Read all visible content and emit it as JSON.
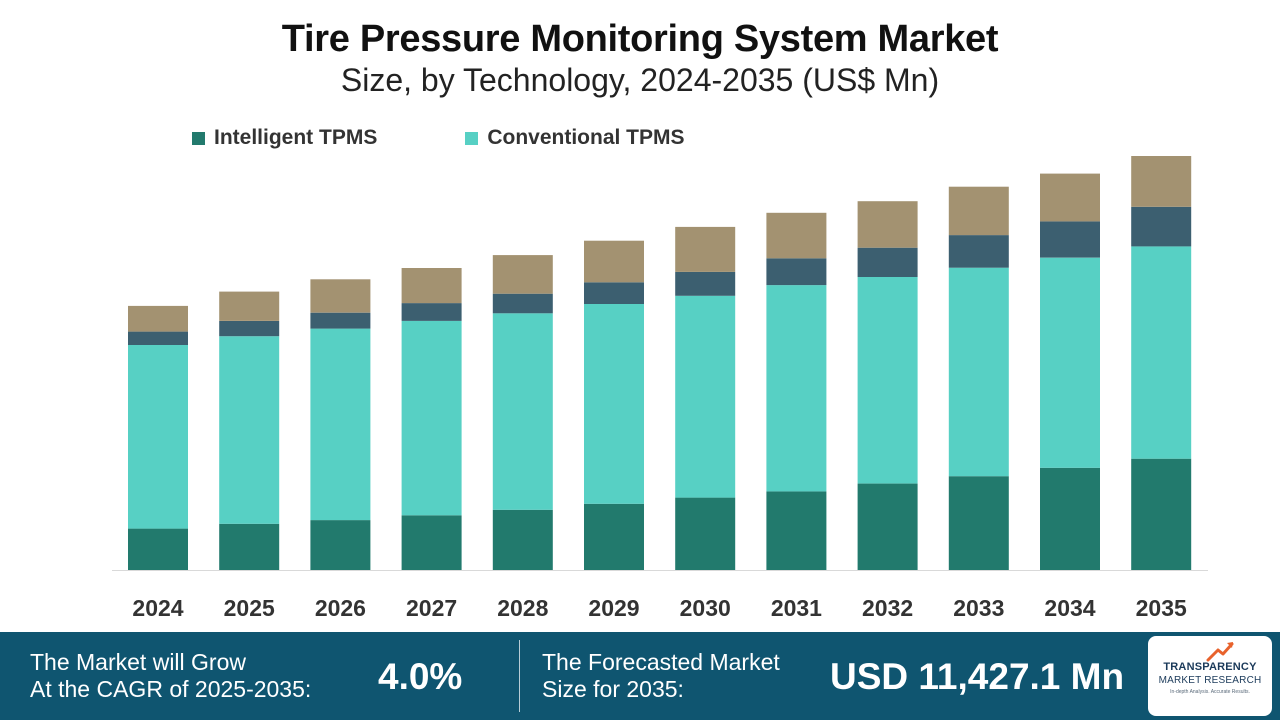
{
  "chart_data": {
    "type": "bar",
    "stacked": true,
    "title": "Tire Pressure Monitoring System Market",
    "subtitle": "Size, by Technology, 2024-2035 (US$ Mn)",
    "xlabel": "",
    "ylabel": "",
    "categories": [
      "2024",
      "2025",
      "2026",
      "2027",
      "2028",
      "2029",
      "2030",
      "2031",
      "2032",
      "2033",
      "2034",
      "2035"
    ],
    "series": [
      {
        "name": "Intelligent TPMS",
        "color": "#227a6d",
        "values": [
          1143,
          1276,
          1376,
          1510,
          1661,
          1827,
          1999,
          2169,
          2386,
          2589,
          2821,
          3072
        ]
      },
      {
        "name": "Conventional TPMS",
        "color": "#57d0c4",
        "values": [
          5068,
          5178,
          5287,
          5366,
          5425,
          5514,
          5570,
          5695,
          5700,
          5756,
          5800,
          5861
        ]
      },
      {
        "name": "",
        "color": "#3c5f70",
        "values": [
          370,
          420,
          440,
          490,
          540,
          600,
          660,
          740,
          810,
          900,
          1000,
          1092
        ]
      },
      {
        "name": "",
        "color": "#a39271",
        "values": [
          709,
          810,
          920,
          970,
          1065,
          1149,
          1241,
          1256,
          1284,
          1335,
          1319,
          1402
        ]
      }
    ],
    "ylim": [
      0,
      11427.1
    ],
    "grid": false,
    "legend_position": "top-left"
  },
  "legend": {
    "intelligent": "Intelligent TPMS",
    "conventional": "Conventional TPMS"
  },
  "footer": {
    "cagr_text_line1": "The Market will Grow",
    "cagr_text_line2": "At the CAGR of 2025-2035:",
    "cagr_value": "4.0%",
    "forecast_text_line1": "The Forecasted Market",
    "forecast_text_line2": "Size for 2035:",
    "forecast_value": "USD 11,427.1 Mn"
  },
  "logo": {
    "line1": "TRANSPARENCY",
    "line2": "MARKET RESEARCH",
    "line3": "In-depth Analysis. Accurate Results."
  }
}
